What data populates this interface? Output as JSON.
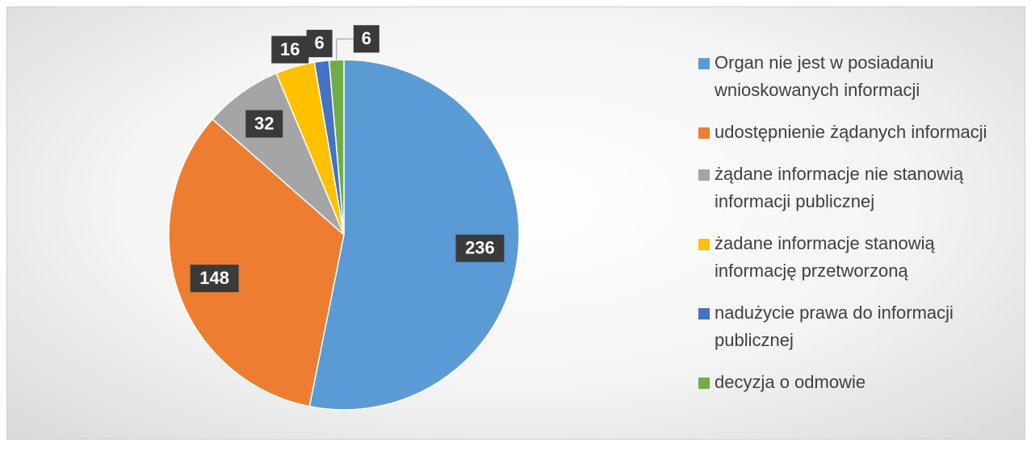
{
  "chart_data": {
    "type": "pie",
    "categories": [
      "Organ nie jest w posiadaniu wnioskowanych informacji",
      "udostępnienie żądanych informacji",
      "żądane informacje nie stanowią informacji publicznej",
      "żadane informacje stanowią informację przetworzoną",
      "nadużycie prawa do informacji publicznej",
      "decyzja o odmowie"
    ],
    "values": [
      236,
      148,
      32,
      16,
      6,
      6
    ],
    "colors": [
      "#5b9bd5",
      "#ed7d31",
      "#a5a5a5",
      "#ffc000",
      "#4472c4",
      "#70ad47"
    ],
    "legend": "right"
  }
}
